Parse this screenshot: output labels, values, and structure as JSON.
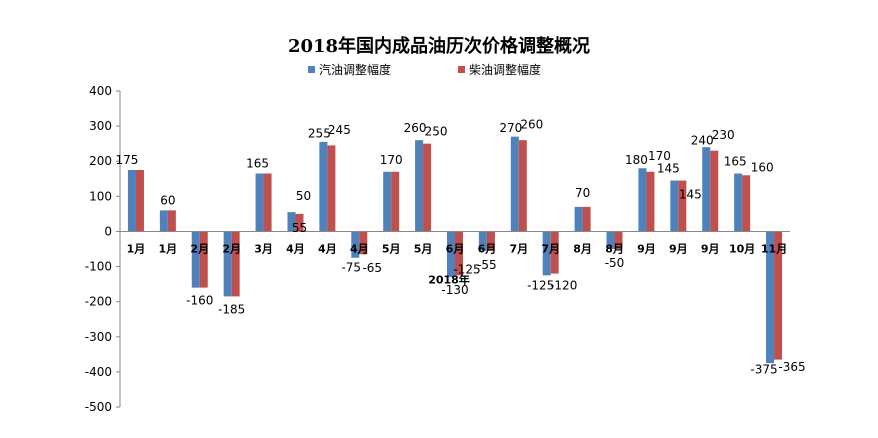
{
  "chart_data": {
    "type": "bar",
    "title": "2018年国内成品油历次价格调整概况",
    "xlabel": "2018年",
    "ylabel": "",
    "ylim": [
      -500,
      400
    ],
    "yticks": [
      400,
      300,
      200,
      100,
      0,
      -100,
      -200,
      -300,
      -400,
      -500
    ],
    "grid": false,
    "legend_position": "top",
    "categories": [
      "1月",
      "1月",
      "2月",
      "2月",
      "3月",
      "4月",
      "4月",
      "4月",
      "5月",
      "5月",
      "6月",
      "6月",
      "7月",
      "7月",
      "8月",
      "8月",
      "9月",
      "9月",
      "9月",
      "10月",
      "11月"
    ],
    "series": [
      {
        "name": "汽油调整幅度",
        "color": "#4F81BD",
        "values": [
          175,
          60,
          -160,
          -185,
          165,
          55,
          255,
          -75,
          170,
          260,
          -130,
          -55,
          270,
          -125,
          70,
          -50,
          180,
          145,
          240,
          165,
          -375
        ]
      },
      {
        "name": "柴油调整幅度",
        "color": "#C0504D",
        "values": [
          175,
          60,
          -160,
          -185,
          165,
          50,
          245,
          -65,
          170,
          250,
          -125,
          -55,
          260,
          -120,
          70,
          -50,
          170,
          145,
          230,
          160,
          -365
        ]
      }
    ]
  },
  "data_labels": [
    "175",
    "60",
    "-160",
    "-185",
    "165",
    "55",
    "50",
    "255",
    "245",
    "-75",
    "-65",
    "170",
    "260",
    "250",
    "-130",
    "-125",
    "-55",
    "270",
    "260",
    "-125",
    "-120",
    "70",
    "-50",
    "180",
    "170",
    "145",
    "145",
    "240",
    "230",
    "165",
    "160",
    "-375",
    "-365"
  ]
}
